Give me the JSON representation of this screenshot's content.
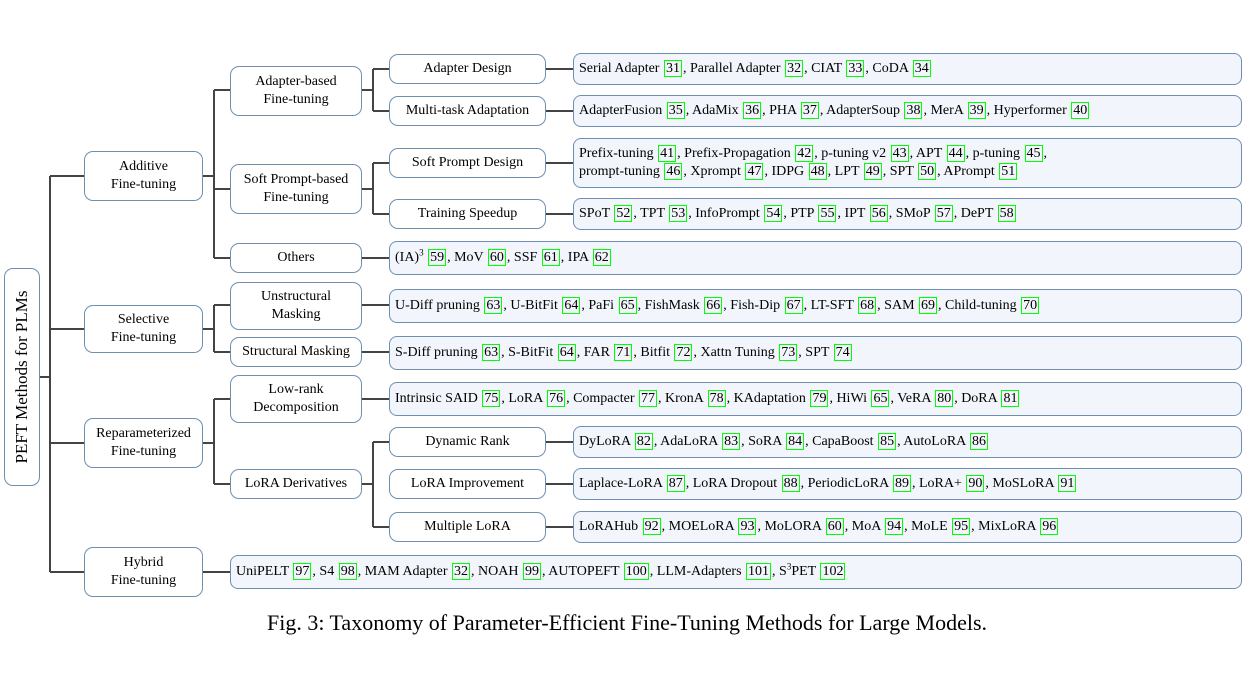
{
  "root": "PEFT Methods for PLMs",
  "categories": {
    "additive": [
      "Additive",
      "Fine-tuning"
    ],
    "selective": [
      "Selective",
      "Fine-tuning"
    ],
    "reparam": [
      "Reparameterized",
      "Fine-tuning"
    ],
    "hybrid": [
      "Hybrid",
      "Fine-tuning"
    ]
  },
  "subcategories": {
    "adapter": [
      "Adapter-based",
      "Fine-tuning"
    ],
    "softprompt": [
      "Soft Prompt-based",
      "Fine-tuning"
    ],
    "others": [
      "Others"
    ],
    "unstructural": [
      "Unstructural",
      "Masking"
    ],
    "structural": [
      "Structural Masking"
    ],
    "lowrank": [
      "Low-rank",
      "Decomposition"
    ],
    "lora_deriv": [
      "LoRA Derivatives"
    ]
  },
  "topics": {
    "adapter_design": "Adapter Design",
    "multitask": "Multi-task Adaptation",
    "sp_design": "Soft Prompt Design",
    "speedup": "Training Speedup",
    "dynamic_rank": "Dynamic Rank",
    "lora_improve": "LoRA Improvement",
    "multiple_lora": "Multiple LoRA"
  },
  "leaves": {
    "adapter_design": [
      [
        [
          "Serial Adapter ",
          "31"
        ],
        [
          "Parallel Adapter",
          "32"
        ],
        [
          "CIAT",
          "33"
        ],
        [
          "CoDA",
          "34"
        ]
      ]
    ],
    "multitask": [
      [
        [
          "AdapterFusion",
          "35"
        ],
        [
          "AdaMix",
          "36"
        ],
        [
          "PHA",
          "37"
        ],
        [
          "AdapterSoup",
          "38"
        ],
        [
          "MerA",
          "39"
        ],
        [
          "Hyperformer",
          "40"
        ]
      ]
    ],
    "sp_design": [
      [
        [
          "Prefix-tuning",
          "41"
        ],
        [
          "Prefix-Propagation",
          "42"
        ],
        [
          "p-tuning v2",
          "43"
        ],
        [
          "APT",
          "44"
        ],
        [
          "p-tuning",
          "45"
        ]
      ],
      [
        [
          "prompt-tuning",
          "46"
        ],
        [
          "Xprompt",
          "47"
        ],
        [
          "IDPG",
          "48"
        ],
        [
          "LPT",
          "49"
        ],
        [
          "SPT",
          "50"
        ],
        [
          "APrompt",
          "51"
        ]
      ]
    ],
    "speedup": [
      [
        [
          "SPoT",
          "52"
        ],
        [
          "TPT",
          "53"
        ],
        [
          "InfoPrompt",
          "54"
        ],
        [
          "PTP",
          "55"
        ],
        [
          "IPT",
          "56"
        ],
        [
          "SMoP",
          "57"
        ],
        [
          "DePT",
          "58"
        ]
      ]
    ],
    "others": [
      [
        [
          "(IA)^3",
          "59"
        ],
        [
          "MoV",
          "60"
        ],
        [
          "SSF",
          "61"
        ],
        [
          "IPA",
          "62"
        ]
      ]
    ],
    "unstructural": [
      [
        [
          "U-Diff pruning",
          "63"
        ],
        [
          "U-BitFit",
          "64"
        ],
        [
          "PaFi",
          "65"
        ],
        [
          "FishMask",
          "66"
        ],
        [
          "Fish-Dip",
          "67"
        ],
        [
          "LT-SFT",
          "68"
        ],
        [
          "SAM",
          "69"
        ],
        [
          "Child-tuning",
          "70"
        ]
      ]
    ],
    "structural": [
      [
        [
          "S-Diff pruning",
          "63"
        ],
        [
          "S-BitFit",
          "64"
        ],
        [
          "FAR",
          "71"
        ],
        [
          "Bitfit",
          "72"
        ],
        [
          "Xattn Tuning",
          "73"
        ],
        [
          "SPT",
          "74"
        ]
      ]
    ],
    "lowrank": [
      [
        [
          "Intrinsic SAID",
          "75"
        ],
        [
          "LoRA",
          "76"
        ],
        [
          "Compacter",
          "77"
        ],
        [
          "KronA",
          "78"
        ],
        [
          "KAdaptation",
          "79"
        ],
        [
          "HiWi",
          "65"
        ],
        [
          "VeRA",
          "80"
        ],
        [
          "DoRA",
          "81"
        ]
      ]
    ],
    "dynamic_rank": [
      [
        [
          "DyLoRA",
          "82"
        ],
        [
          "AdaLoRA",
          "83"
        ],
        [
          "SoRA",
          "84"
        ],
        [
          "CapaBoost",
          "85"
        ],
        [
          "AutoLoRA",
          "86"
        ]
      ]
    ],
    "lora_improve": [
      [
        [
          "Laplace-LoRA",
          "87"
        ],
        [
          "LoRA Dropout",
          "88"
        ],
        [
          "PeriodicLoRA",
          "89"
        ],
        [
          "LoRA+",
          "90"
        ],
        [
          "MoSLoRA",
          "91"
        ]
      ]
    ],
    "multiple_lora": [
      [
        [
          "LoRAHub",
          "92"
        ],
        [
          "MOELoRA",
          "93"
        ],
        [
          "MoLORA",
          "60"
        ],
        [
          "MoA",
          "94"
        ],
        [
          "MoLE",
          "95"
        ],
        [
          "MixLoRA",
          "96"
        ]
      ]
    ],
    "hybrid": [
      [
        [
          "UniPELT",
          "97"
        ],
        [
          "S4",
          "98"
        ],
        [
          "MAM Adapter",
          "32"
        ],
        [
          "NOAH",
          "99"
        ],
        [
          "AUTOPEFT",
          "100"
        ],
        [
          "LLM-Adapters",
          "101"
        ],
        [
          "S^3PET",
          "102"
        ]
      ]
    ]
  },
  "caption": "Fig. 3: Taxonomy of Parameter-Efficient Fine-Tuning Methods for Large Models."
}
